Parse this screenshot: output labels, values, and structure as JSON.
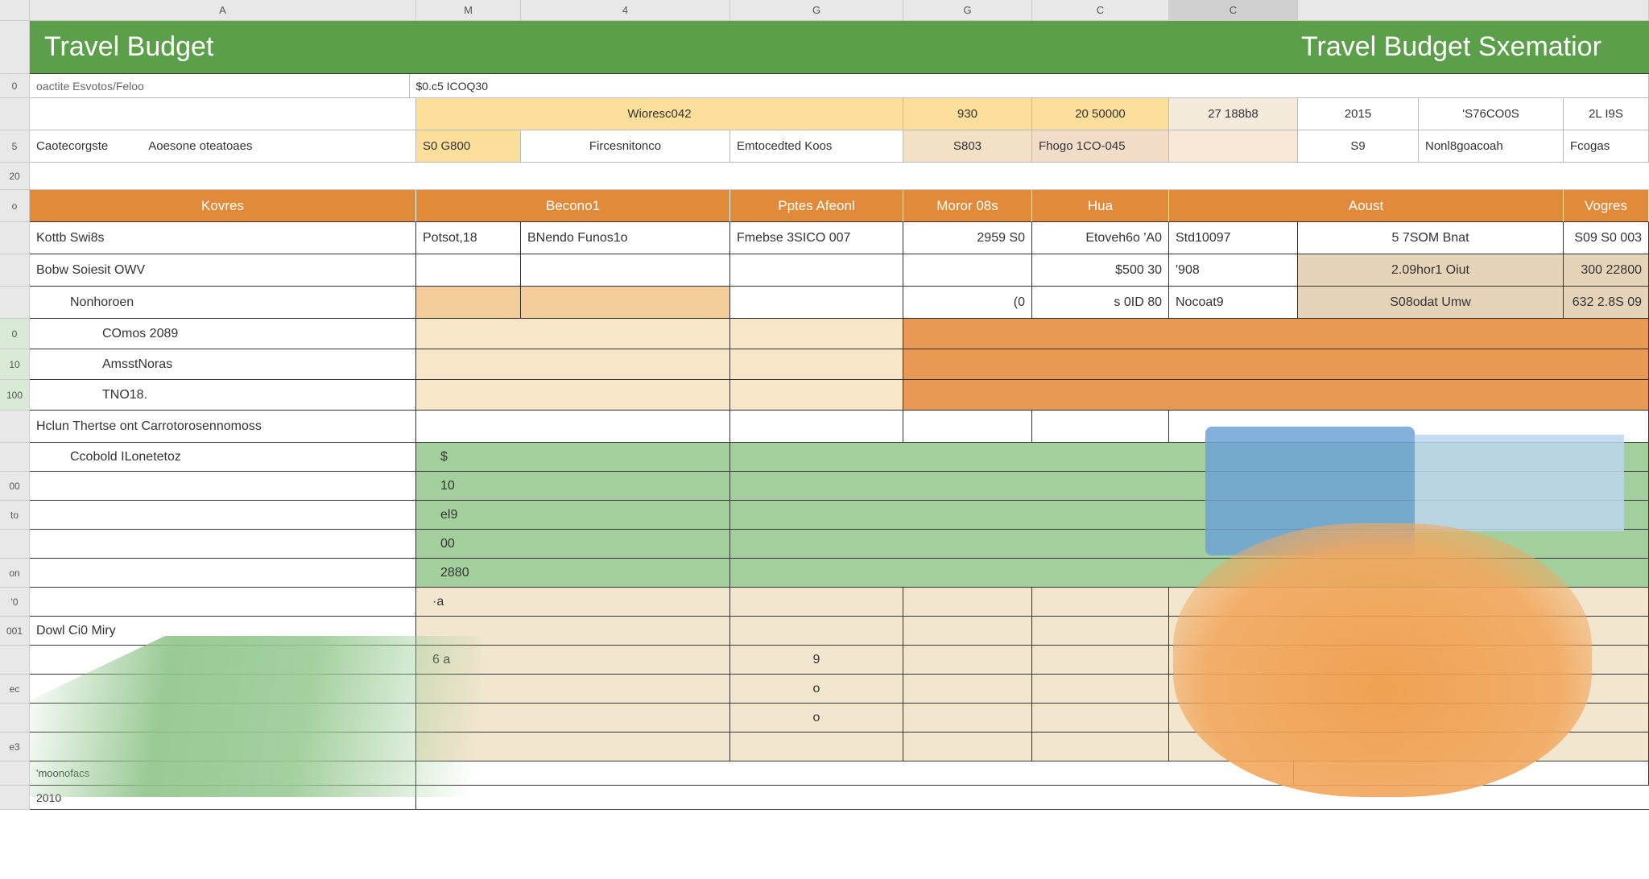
{
  "colors": {
    "header_green": "#5b9f4a",
    "orange_hdr": "#e08a3a",
    "orange_fill": "#e89a55",
    "beige": "#f4cc9a",
    "light_beige": "#f8e6c8",
    "yellow": "#fcdf9a",
    "green_fill": "#a3cf9c",
    "blue": "#6ea3d6",
    "lightblue": "#bcd6ed",
    "tan": "#e6d4b8",
    "grid": "#cccccc",
    "text": "#333333"
  },
  "columns": [
    "A",
    "M",
    "4",
    "G",
    "G",
    "C",
    "C"
  ],
  "title_left": "Travel Budget",
  "title_right": "Travel Budget Sxematior",
  "info_row1": {
    "a": "oactite Esvotos/Feloo",
    "b": "$0.c5 ICOQ30"
  },
  "info_row2": {
    "c": "Wioresc042",
    "e": "930",
    "f": "20 50000",
    "g": "27 188b8",
    "h": "2015",
    "i": "'S76CO0S",
    "j": "2L I9S"
  },
  "info_row3": {
    "a1": "Caotecorgste",
    "a2": "Aoesone oteatoaes",
    "b": "S0 G800",
    "c1": "Fircesnitonco",
    "c2": "Emtocedted Koos",
    "e": "S803",
    "f": "Fhogo 1CO-045",
    "h": "S9",
    "i": "Nonl8goacoah",
    "j": "Fcogas"
  },
  "rownum_gap": "20",
  "orange_headers": [
    "Kovres",
    "Becono1",
    "Pptes Afeonl",
    "Moror 08s",
    "Hua",
    "Aoust",
    "Vogres"
  ],
  "data_rows": [
    {
      "rn": "",
      "a": "Kottb  Swi8s",
      "b": "Potsot,18",
      "c": "BNendo Funos1o",
      "d": "Fmebse 3SICO 007",
      "e": "2959   S0",
      "f": "Etoveh6o 'A0",
      "g": "Std10097",
      "h": "5 7SOM Bnat",
      "i": "S09 S0 003",
      "bg": [
        "",
        "",
        "",
        "",
        "",
        "",
        "",
        "",
        ""
      ]
    },
    {
      "rn": "",
      "a": "Bobw  Soiesit OWV",
      "b": "",
      "c": "",
      "d": "",
      "e": "",
      "f": "$500   30",
      "g": "'908",
      "h": "2.09hor1 Oiut",
      "i": "300 22800",
      "bg": [
        "",
        "",
        "",
        "",
        "",
        "",
        "",
        "tan",
        "tan"
      ]
    },
    {
      "rn": "",
      "a": "Nonhoroen",
      "b": "",
      "c": "",
      "d": "",
      "e": "(0",
      "f": "s  0ID  80",
      "g": "Nocoat9",
      "h": "S08odat Umw",
      "i": "632 2.8S 09",
      "bg": [
        "",
        "beige",
        "beige",
        "",
        "",
        "",
        "",
        "tan",
        "tan"
      ],
      "indent": 1
    },
    {
      "rn": "0",
      "a": "COmos 2089",
      "bg_wide": "orange_span",
      "indent": 2
    },
    {
      "rn": "10",
      "a": "AmsstNoras",
      "bg_wide": "orange_span",
      "indent": 2
    },
    {
      "rn": "100",
      "a": "TNO18.",
      "bg_wide": "orange_span",
      "indent": 2
    }
  ],
  "section2_header": {
    "rn": "",
    "a": "Hclun  Thertse ont Carrotorosennomoss"
  },
  "green_rows": [
    {
      "rn": "",
      "a": "Ccobold ILonetetoz",
      "val": "$"
    },
    {
      "rn": "00",
      "a": "",
      "val": "10"
    },
    {
      "rn": "to",
      "a": "",
      "val": "el9"
    },
    {
      "rn": "",
      "a": "",
      "val": "00"
    },
    {
      "rn": "on",
      "a": "",
      "val": "2880"
    }
  ],
  "tan_rows": [
    {
      "rn": "'0",
      "a": "",
      "val": "·a"
    },
    {
      "rn": "001",
      "a": "Dowl Ci0 Miry",
      "val": ""
    },
    {
      "rn": "",
      "a": "",
      "val": "6   a",
      "val2": "9"
    },
    {
      "rn": "ec",
      "a": "",
      "val": "",
      "dot": "o"
    },
    {
      "rn": "",
      "a": "",
      "val": "",
      "dot": "o"
    },
    {
      "rn": "e3",
      "a": "",
      "val": ""
    }
  ],
  "footer_rows": [
    {
      "rn": "",
      "a": "'moonofacs"
    },
    {
      "rn": "",
      "a": "2010"
    }
  ]
}
